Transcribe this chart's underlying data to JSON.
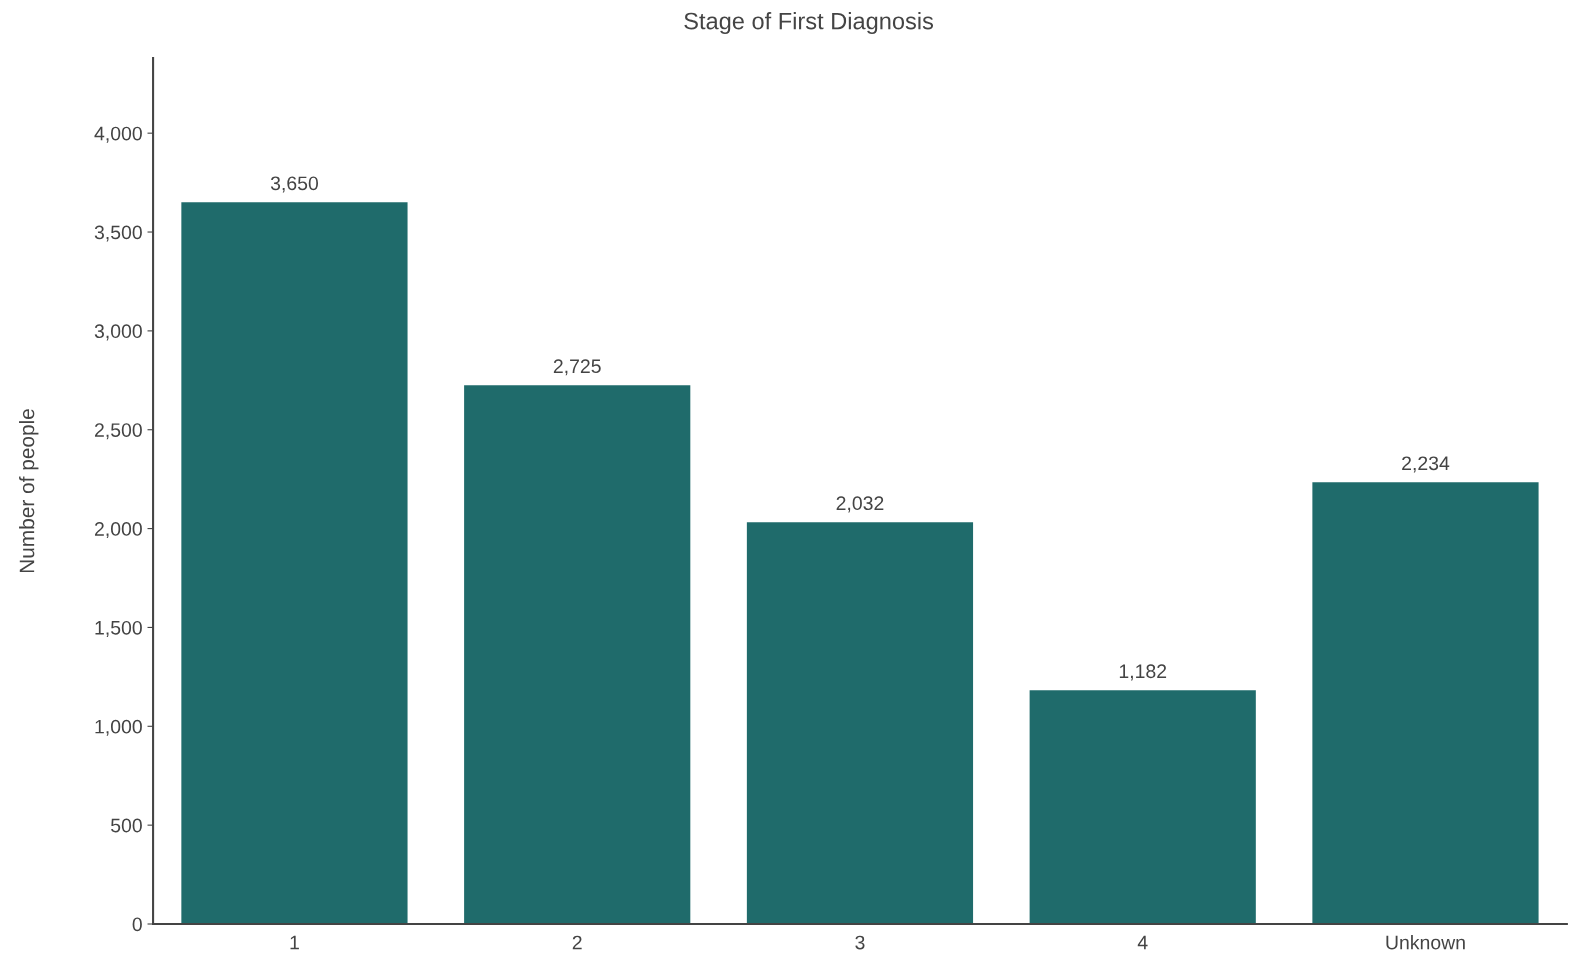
{
  "chart_data": {
    "type": "bar",
    "title": "Stage of First Diagnosis",
    "ylabel": "Number of people",
    "categories": [
      "1",
      "2",
      "3",
      "4",
      "Unknown"
    ],
    "values": [
      3650,
      2725,
      2032,
      1182,
      2234
    ],
    "value_labels": [
      "3,650",
      "2,725",
      "2,032",
      "1,182",
      "2,234"
    ],
    "color": "#1f6b6b",
    "ylim": [
      0,
      4380
    ],
    "yticks": [
      0,
      500,
      {
        "value": 1000,
        "label": "1,000"
      },
      {
        "value": 1500,
        "label": "1,500"
      },
      {
        "value": 2000,
        "label": "2,000"
      },
      {
        "value": 2500,
        "label": "2,500"
      },
      {
        "value": 3000,
        "label": "3,000"
      },
      {
        "value": 3500,
        "label": "3,500"
      },
      {
        "value": 4000,
        "label": "4,000"
      }
    ],
    "grid": false,
    "legend": false
  }
}
